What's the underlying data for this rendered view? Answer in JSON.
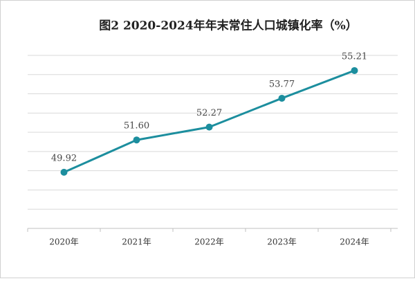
{
  "chart_data": {
    "type": "line",
    "title": "图2  2020-2024年年末常住人口城镇化率（%）",
    "categories": [
      "2020年",
      "2021年",
      "2022年",
      "2023年",
      "2024年"
    ],
    "values": [
      49.92,
      51.6,
      52.27,
      53.77,
      55.21
    ],
    "value_labels": [
      "49.92",
      "51.60",
      "52.27",
      "53.77",
      "55.21"
    ],
    "color": "#1c8e9e",
    "ylim": [
      47,
      56
    ],
    "yticks": [
      47,
      48,
      49,
      50,
      51,
      52,
      53,
      54,
      55,
      56
    ],
    "ytick_labels": false,
    "grid": true
  }
}
